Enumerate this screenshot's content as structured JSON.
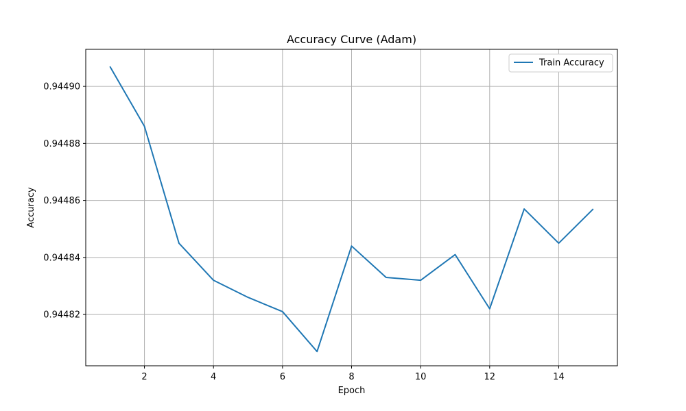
{
  "chart_data": {
    "type": "line",
    "title": "Accuracy Curve (Adam)",
    "xlabel": "Epoch",
    "ylabel": "Accuracy",
    "xlim": [
      0.3,
      15.7
    ],
    "ylim": [
      0.944802,
      0.944913
    ],
    "xticks": [
      2,
      4,
      6,
      8,
      10,
      12,
      14
    ],
    "yticks": [
      0.94482,
      0.94484,
      0.94486,
      0.94488,
      0.9449
    ],
    "ytick_labels": [
      "0.94482",
      "0.94484",
      "0.94486",
      "0.94488",
      "0.94490"
    ],
    "grid": true,
    "legend_position": "top-right",
    "series": [
      {
        "name": "Train Accuracy",
        "color": "#1f77b4",
        "x": [
          1,
          2,
          3,
          4,
          5,
          6,
          7,
          8,
          9,
          10,
          11,
          12,
          13,
          14,
          15
        ],
        "y": [
          0.944907,
          0.944886,
          0.944845,
          0.944832,
          0.944826,
          0.944821,
          0.944807,
          0.944844,
          0.944833,
          0.944832,
          0.944841,
          0.944822,
          0.944857,
          0.944845,
          0.944857
        ]
      }
    ]
  }
}
